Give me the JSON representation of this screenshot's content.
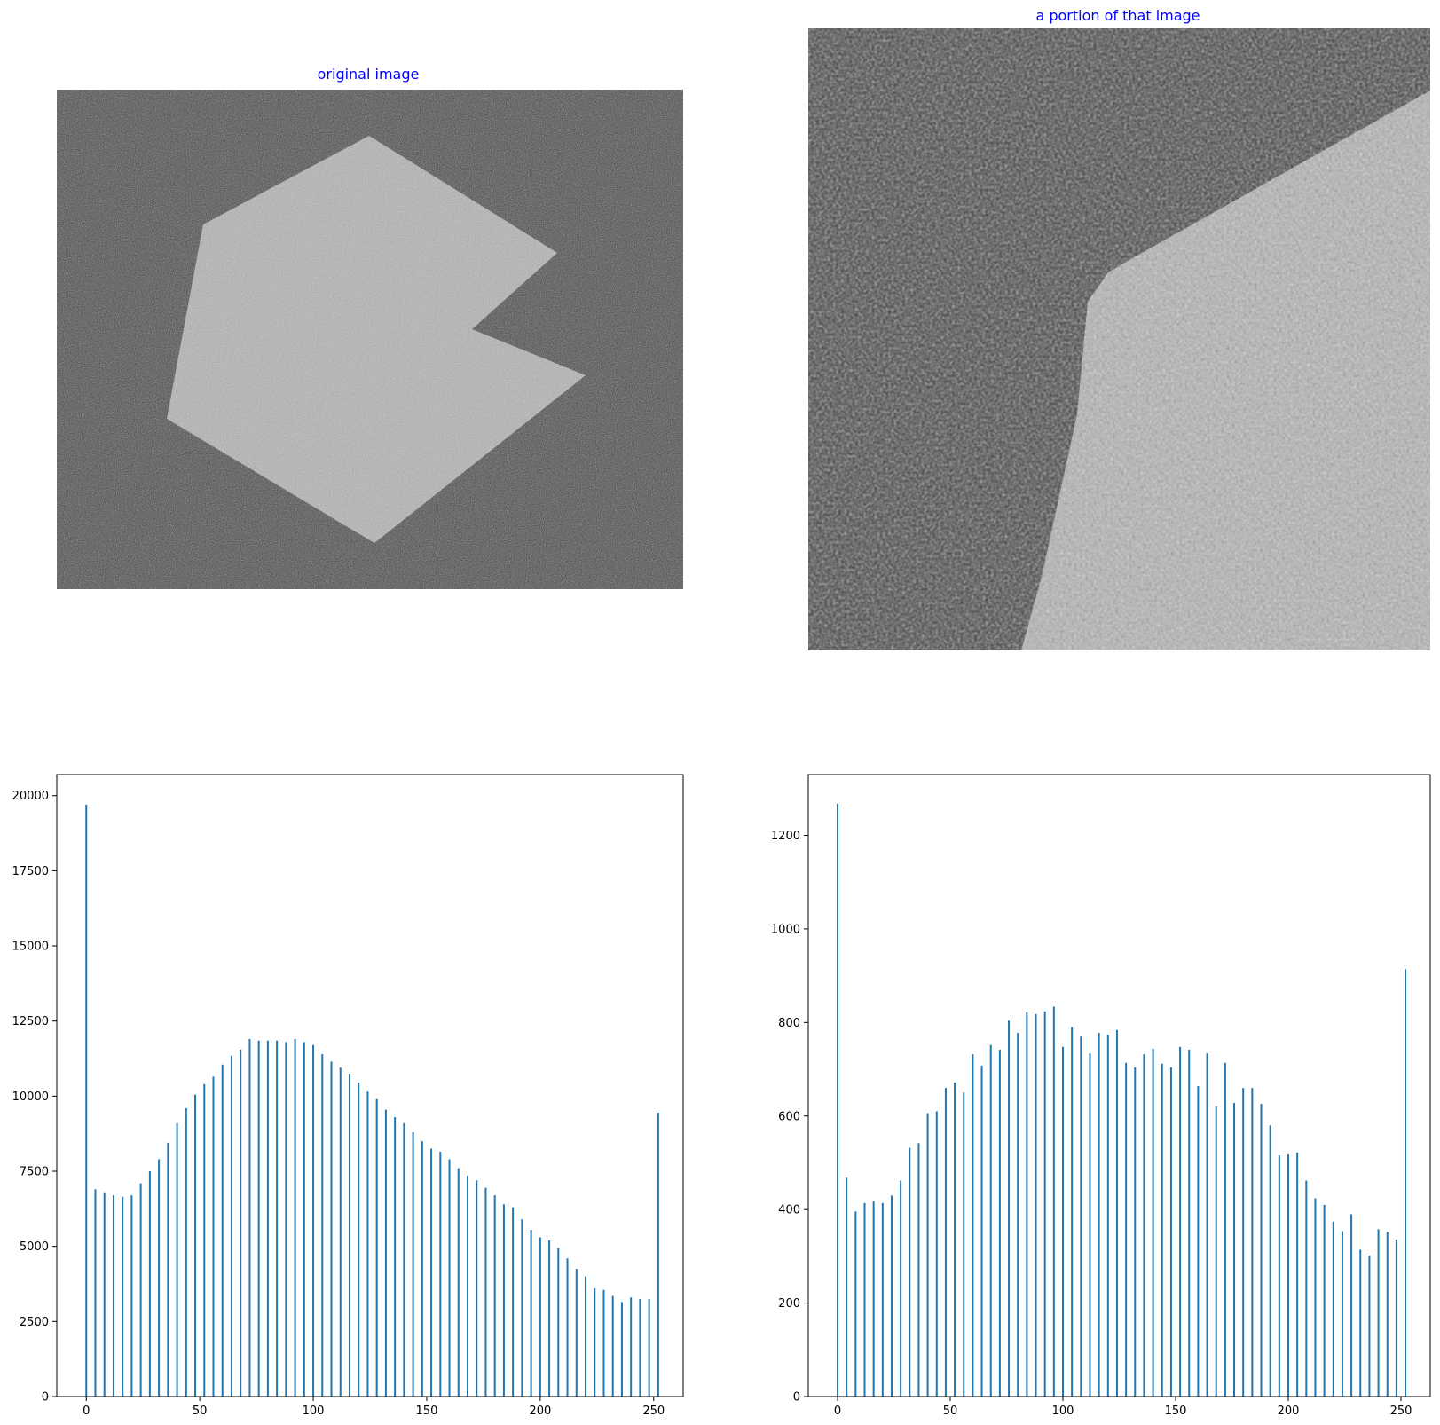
{
  "images": {
    "original_title": "original image",
    "portion_title": "a portion of that image",
    "title_color": "#0000ff",
    "background_gray": "#3e3e3e",
    "shape_gray": "#b4b4b4"
  },
  "chart_data": [
    {
      "type": "bar",
      "title": "",
      "xlabel": "",
      "ylabel": "",
      "xlim": [
        -13,
        263
      ],
      "ylim": [
        0,
        20700
      ],
      "xticks": [
        0,
        50,
        100,
        150,
        200,
        250
      ],
      "yticks": [
        0,
        2500,
        5000,
        7500,
        10000,
        12500,
        15000,
        17500,
        20000
      ],
      "bar_color": "#1f77b4",
      "x": [
        0,
        4,
        8,
        12,
        16,
        20,
        24,
        28,
        32,
        36,
        40,
        44,
        48,
        52,
        56,
        60,
        64,
        68,
        72,
        76,
        80,
        84,
        88,
        92,
        96,
        100,
        104,
        108,
        112,
        116,
        120,
        124,
        128,
        132,
        136,
        140,
        144,
        148,
        152,
        156,
        160,
        164,
        168,
        172,
        176,
        180,
        184,
        188,
        192,
        196,
        200,
        204,
        208,
        212,
        216,
        220,
        224,
        228,
        232,
        236,
        240,
        244,
        248,
        252
      ],
      "values": [
        19700,
        6900,
        6800,
        6700,
        6650,
        6700,
        7100,
        7500,
        7900,
        8450,
        9100,
        9600,
        10050,
        10400,
        10650,
        11050,
        11350,
        11550,
        11900,
        11850,
        11850,
        11850,
        11800,
        11900,
        11800,
        11700,
        11400,
        11150,
        10950,
        10750,
        10450,
        10150,
        9900,
        9550,
        9300,
        9100,
        8800,
        8500,
        8250,
        8150,
        7900,
        7600,
        7350,
        7200,
        6950,
        6700,
        6400,
        6300,
        5900,
        5550,
        5300,
        5200,
        4950,
        4600,
        4250,
        4000,
        3600,
        3550,
        3350,
        3150,
        3300,
        3250,
        3250,
        9450
      ]
    },
    {
      "type": "bar",
      "title": "",
      "xlabel": "",
      "ylabel": "",
      "xlim": [
        -13,
        263
      ],
      "ylim": [
        0,
        1330
      ],
      "xticks": [
        0,
        50,
        100,
        150,
        200,
        250
      ],
      "yticks": [
        0,
        200,
        400,
        600,
        800,
        1000,
        1200
      ],
      "bar_color": "#1f77b4",
      "x": [
        0,
        4,
        8,
        12,
        16,
        20,
        24,
        28,
        32,
        36,
        40,
        44,
        48,
        52,
        56,
        60,
        64,
        68,
        72,
        76,
        80,
        84,
        88,
        92,
        96,
        100,
        104,
        108,
        112,
        116,
        120,
        124,
        128,
        132,
        136,
        140,
        144,
        148,
        152,
        156,
        160,
        164,
        168,
        172,
        176,
        180,
        184,
        188,
        192,
        196,
        200,
        204,
        208,
        212,
        216,
        220,
        224,
        228,
        232,
        236,
        240,
        244,
        248,
        252
      ],
      "values": [
        1268,
        468,
        396,
        414,
        418,
        414,
        430,
        462,
        532,
        542,
        606,
        610,
        660,
        672,
        650,
        732,
        708,
        752,
        742,
        804,
        778,
        822,
        818,
        824,
        834,
        748,
        790,
        770,
        734,
        778,
        774,
        784,
        714,
        704,
        732,
        744,
        712,
        704,
        748,
        742,
        664,
        734,
        620,
        714,
        628,
        660,
        660,
        626,
        580,
        516,
        518,
        522,
        462,
        424,
        410,
        374,
        354,
        390,
        314,
        302,
        358,
        352,
        336,
        914
      ]
    }
  ]
}
